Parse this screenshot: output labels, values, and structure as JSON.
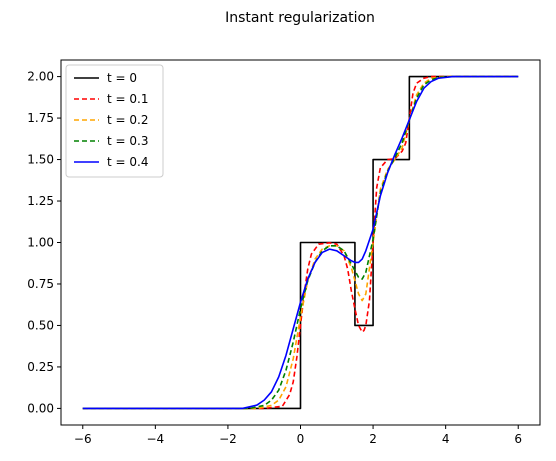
{
  "chart_data": {
    "type": "line",
    "title": "Instant regularization",
    "xlabel": "",
    "ylabel": "",
    "xlim": [
      -6.6,
      6.6
    ],
    "ylim": [
      -0.1,
      2.1
    ],
    "xticks": [
      -6,
      -4,
      -2,
      0,
      2,
      4,
      6
    ],
    "xtick_labels": [
      "−6",
      "−4",
      "−2",
      "0",
      "2",
      "4",
      "6"
    ],
    "yticks": [
      0.0,
      0.25,
      0.5,
      0.75,
      1.0,
      1.25,
      1.5,
      1.75,
      2.0
    ],
    "ytick_labels": [
      "0.00",
      "0.25",
      "0.50",
      "0.75",
      "1.00",
      "1.25",
      "1.50",
      "1.75",
      "2.00"
    ],
    "grid": false,
    "legend_position": "top-left",
    "series": [
      {
        "name": "t = 0",
        "color": "#000000",
        "dash": "solid",
        "x": [
          -6,
          0,
          0,
          1.5,
          1.5,
          2,
          2,
          3,
          3,
          6
        ],
        "y": [
          0,
          0,
          1,
          1,
          0.5,
          0.5,
          1.5,
          1.5,
          2,
          2
        ]
      },
      {
        "name": "t = 0.1",
        "color": "#ff0000",
        "dash": "dashed",
        "x": [
          -6,
          -1,
          -0.5,
          -0.3,
          -0.2,
          -0.1,
          0,
          0.1,
          0.2,
          0.3,
          0.5,
          0.8,
          1.0,
          1.2,
          1.3,
          1.4,
          1.5,
          1.6,
          1.7,
          1.75,
          1.8,
          1.9,
          2.0,
          2.1,
          2.2,
          2.4,
          2.6,
          2.8,
          2.9,
          3.0,
          3.1,
          3.2,
          3.4,
          3.6,
          4,
          6
        ],
        "y": [
          0,
          0,
          0.013,
          0.083,
          0.16,
          0.31,
          0.5,
          0.69,
          0.84,
          0.93,
          0.99,
          0.998,
          0.99,
          0.92,
          0.84,
          0.71,
          0.6,
          0.5,
          0.46,
          0.47,
          0.5,
          0.65,
          1.0,
          1.33,
          1.45,
          1.5,
          1.505,
          1.55,
          1.6,
          1.75,
          1.9,
          1.96,
          1.99,
          2.0,
          2.0,
          2.0
        ]
      },
      {
        "name": "t = 0.2",
        "color": "#ffa500",
        "dash": "dashed",
        "x": [
          -6,
          -1.2,
          -0.8,
          -0.6,
          -0.4,
          -0.2,
          0,
          0.2,
          0.4,
          0.6,
          0.8,
          1.0,
          1.2,
          1.4,
          1.6,
          1.7,
          1.8,
          2.0,
          2.2,
          2.4,
          2.6,
          2.8,
          3.0,
          3.2,
          3.4,
          3.6,
          4,
          6
        ],
        "y": [
          0,
          0.0,
          0.018,
          0.05,
          0.13,
          0.3,
          0.55,
          0.77,
          0.9,
          0.96,
          0.98,
          0.98,
          0.95,
          0.85,
          0.69,
          0.65,
          0.69,
          1.0,
          1.32,
          1.44,
          1.5,
          1.57,
          1.74,
          1.89,
          1.96,
          1.99,
          2.0,
          2.0
        ]
      },
      {
        "name": "t = 0.3",
        "color": "#008000",
        "dash": "dashed",
        "x": [
          -6,
          -1.4,
          -1.0,
          -0.8,
          -0.6,
          -0.4,
          -0.2,
          0,
          0.2,
          0.4,
          0.6,
          0.8,
          1.0,
          1.2,
          1.4,
          1.6,
          1.7,
          1.8,
          2.0,
          2.2,
          2.4,
          2.6,
          2.8,
          3.0,
          3.2,
          3.4,
          3.6,
          3.8,
          4.2,
          6
        ],
        "y": [
          0,
          0.0,
          0.018,
          0.05,
          0.11,
          0.23,
          0.4,
          0.6,
          0.77,
          0.88,
          0.95,
          0.98,
          0.98,
          0.95,
          0.87,
          0.79,
          0.78,
          0.82,
          1.02,
          1.3,
          1.43,
          1.51,
          1.6,
          1.74,
          1.87,
          1.95,
          1.98,
          1.995,
          2.0,
          2.0
        ]
      },
      {
        "name": "t = 0.4",
        "color": "#0000ff",
        "dash": "solid",
        "x": [
          -6,
          -1.6,
          -1.2,
          -1.0,
          -0.8,
          -0.6,
          -0.4,
          -0.2,
          0,
          0.2,
          0.4,
          0.6,
          0.8,
          1.0,
          1.2,
          1.4,
          1.5,
          1.6,
          1.7,
          1.8,
          2.0,
          2.2,
          2.4,
          2.6,
          2.8,
          3.0,
          3.2,
          3.4,
          3.6,
          3.8,
          4.2,
          6
        ],
        "y": [
          0,
          0.0,
          0.02,
          0.05,
          0.1,
          0.19,
          0.32,
          0.48,
          0.64,
          0.78,
          0.88,
          0.94,
          0.96,
          0.95,
          0.92,
          0.89,
          0.88,
          0.88,
          0.9,
          0.95,
          1.08,
          1.28,
          1.42,
          1.53,
          1.63,
          1.74,
          1.85,
          1.93,
          1.97,
          1.99,
          2.0,
          2.0
        ]
      }
    ]
  }
}
